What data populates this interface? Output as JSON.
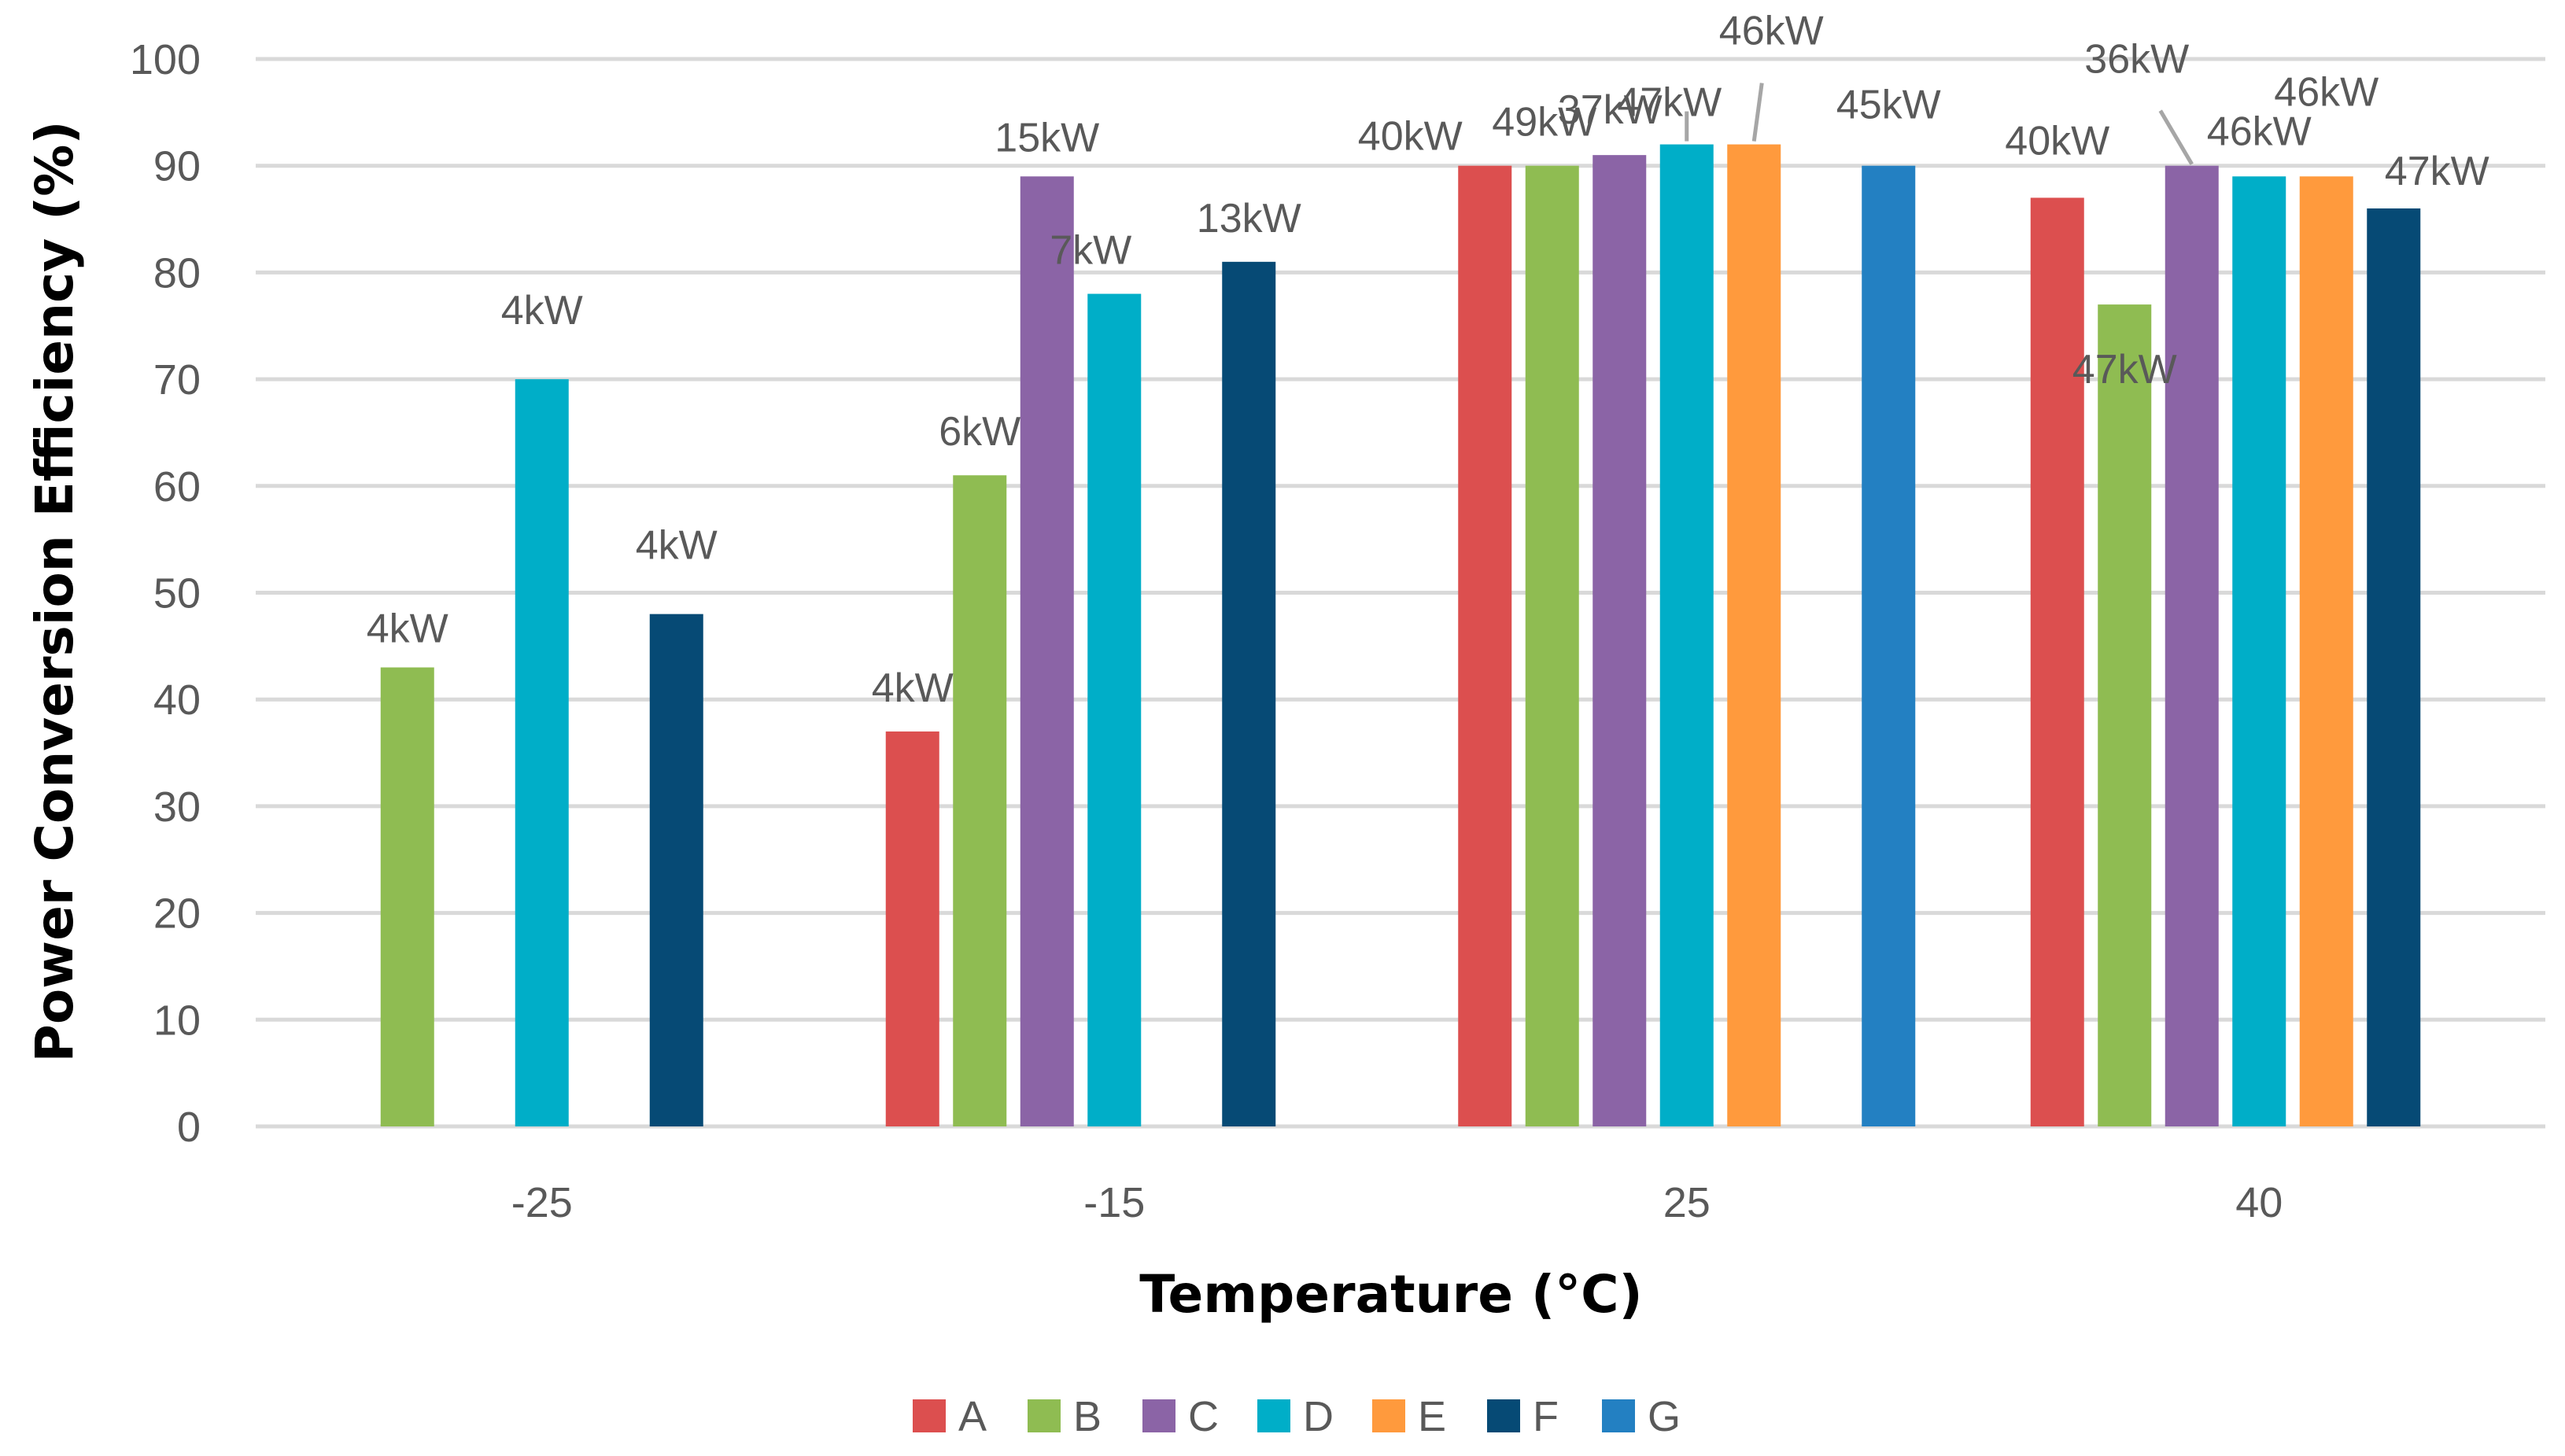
{
  "chart_data": {
    "type": "bar",
    "title": "",
    "xlabel": "Temperature (°C)",
    "ylabel": "Power Conversion Efficiency (%)",
    "ylim": [
      0,
      100
    ],
    "yticks": [
      0,
      10,
      20,
      30,
      40,
      50,
      60,
      70,
      80,
      90,
      100
    ],
    "grid": true,
    "legend_position": "bottom",
    "categories": [
      "-25",
      "-15",
      "25",
      "40"
    ],
    "series": [
      {
        "name": "A",
        "color": "#dc4f4f",
        "values": [
          null,
          37,
          90,
          87
        ],
        "labels": [
          null,
          "4kW",
          "40kW",
          "40kW"
        ]
      },
      {
        "name": "B",
        "color": "#8fbc52",
        "values": [
          43,
          61,
          90,
          77
        ],
        "labels": [
          "4kW",
          "6kW",
          "49kW",
          "47kW"
        ]
      },
      {
        "name": "C",
        "color": "#8b64a6",
        "values": [
          null,
          89,
          91,
          90
        ],
        "labels": [
          null,
          "15kW",
          "37kW",
          "36kW"
        ]
      },
      {
        "name": "D",
        "color": "#00aec8",
        "values": [
          70,
          78,
          92,
          89
        ],
        "labels": [
          "4kW",
          "7kW",
          "47kW",
          "46kW"
        ]
      },
      {
        "name": "E",
        "color": "#ff9a3d",
        "values": [
          null,
          null,
          92,
          89
        ],
        "labels": [
          null,
          null,
          "46kW",
          "46kW"
        ]
      },
      {
        "name": "F",
        "color": "#064a75",
        "values": [
          48,
          81,
          null,
          86
        ],
        "labels": [
          "4kW",
          "13kW",
          null,
          "47kW"
        ]
      },
      {
        "name": "G",
        "color": "#2380c2",
        "values": [
          null,
          null,
          90,
          null
        ],
        "labels": [
          null,
          null,
          "45kW",
          null
        ]
      }
    ]
  }
}
